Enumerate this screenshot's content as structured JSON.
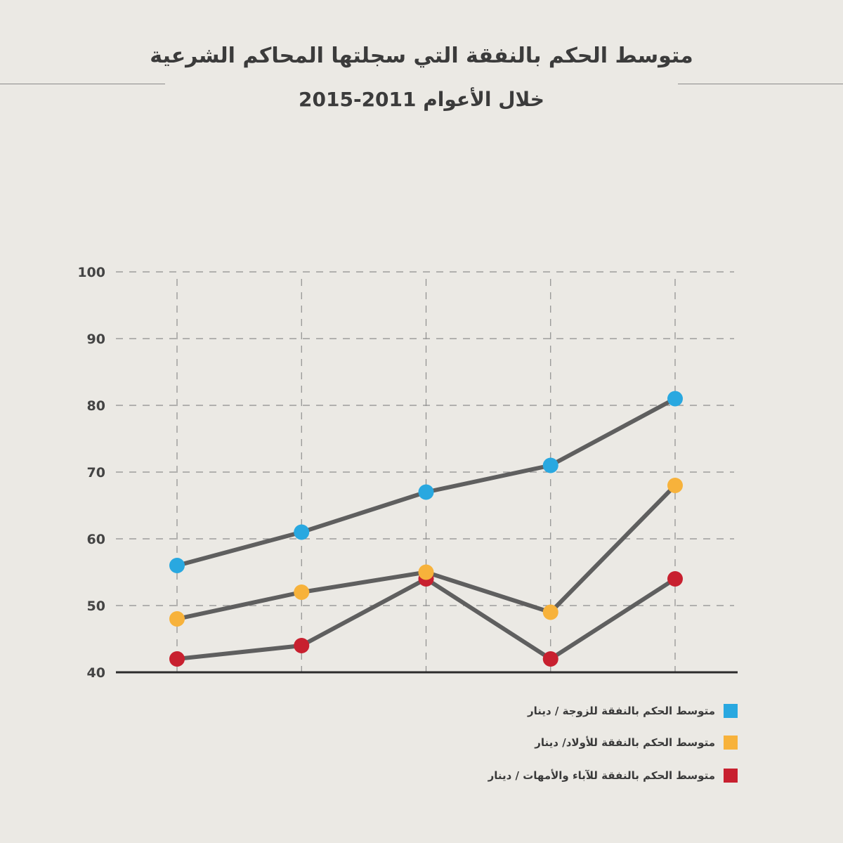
{
  "header": {
    "title_line1": "متوسط الحكم بالنفقة التي سجلتها المحاكم الشرعية",
    "title_line2": "خلال الأعوام  2011-2015"
  },
  "chart_data": {
    "type": "line",
    "title": "متوسط الحكم بالنفقة التي سجلتها المحاكم الشرعية خلال الأعوام  2011-2015",
    "x": [
      1,
      2,
      3,
      4,
      5
    ],
    "ylim": [
      40,
      100
    ],
    "yticks": [
      40,
      50,
      60,
      70,
      80,
      90,
      100
    ],
    "grid": true,
    "legend_position": "bottom-right",
    "series": [
      {
        "name": "متوسط الحكم بالنفقة للزوجة / دينار",
        "values": [
          56,
          61,
          67,
          71,
          81
        ],
        "color": "#29a8e0"
      },
      {
        "name": "متوسط الحكم بالنفقة للأولاد/ دينار",
        "values": [
          48,
          52,
          55,
          49,
          68
        ],
        "color": "#f7b23b"
      },
      {
        "name": "متوسط الحكم بالنفقة للآباء والأمهات / دينار",
        "values": [
          42,
          44,
          54,
          42,
          54
        ],
        "color": "#c8202f"
      }
    ],
    "line_color": "#5f5f5f"
  }
}
